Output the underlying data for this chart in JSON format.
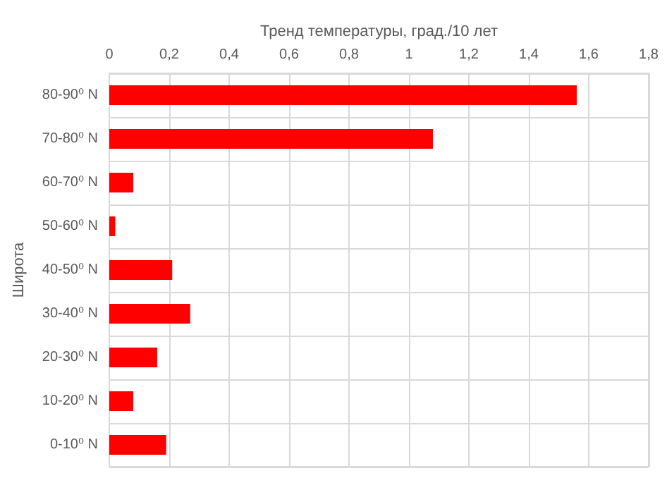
{
  "chart_data": {
    "type": "bar",
    "orientation": "horizontal",
    "xlabel": "Тренд температуры, град./10 лет",
    "ylabel": "Широта",
    "categories": [
      "80-90⁰ N",
      "70-80⁰ N",
      "60-70⁰ N",
      "50-60⁰ N",
      "40-50⁰ N",
      "30-40⁰ N",
      "20-30⁰ N",
      "10-20⁰ N",
      "0-10⁰ N"
    ],
    "values": [
      1.56,
      1.08,
      0.08,
      0.02,
      0.21,
      0.27,
      0.16,
      0.08,
      0.19
    ],
    "color": "#ff0000",
    "xlim": [
      0,
      1.8
    ],
    "xticks": [
      0,
      {
        "value": 0.2,
        "label": "0,2"
      },
      {
        "value": 0.4,
        "label": "0,4"
      },
      {
        "value": 0.6,
        "label": "0,6"
      },
      {
        "value": 0.8,
        "label": "0,8"
      },
      1,
      {
        "value": 1.2,
        "label": "1,2"
      },
      {
        "value": 1.4,
        "label": "1,4"
      },
      {
        "value": 1.6,
        "label": "1,6"
      },
      {
        "value": 1.8,
        "label": "1,8"
      }
    ],
    "grid": true
  }
}
